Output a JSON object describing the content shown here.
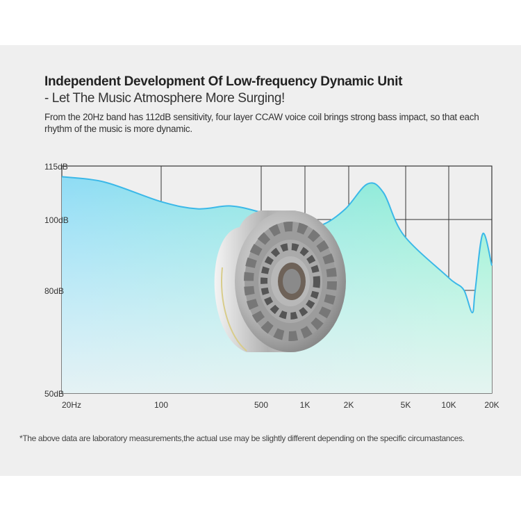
{
  "header": {
    "title": "Independent Development Of Low-frequency Dynamic Unit",
    "subtitle": "- Let The Music Atmosphere More Surging!",
    "description": "From the 20Hz band has 112dB sensitivity, four layer CCAW voice coil brings strong bass impact, so that each rhythm of the music is more dynamic."
  },
  "footnote": "*The above data are laboratory measurements,the actual use may be slightly different depending on the specific circumastances.",
  "chart_data": {
    "type": "area",
    "title": "",
    "xlabel": "",
    "ylabel": "",
    "x_scale": "log",
    "xlim": [
      20,
      20000
    ],
    "ylim": [
      50,
      115
    ],
    "grid": true,
    "x_ticks": [
      {
        "value": 20,
        "label": "20Hz"
      },
      {
        "value": 100,
        "label": "100"
      },
      {
        "value": 500,
        "label": "500"
      },
      {
        "value": 1000,
        "label": "1K"
      },
      {
        "value": 2000,
        "label": "2K"
      },
      {
        "value": 5000,
        "label": "5K"
      },
      {
        "value": 10000,
        "label": "10K"
      },
      {
        "value": 20000,
        "label": "20K"
      }
    ],
    "y_ticks": [
      {
        "value": 115,
        "label": "115dB"
      },
      {
        "value": 100,
        "label": "100dB"
      },
      {
        "value": 80,
        "label": "80dB"
      },
      {
        "value": 50,
        "label": "50dB"
      }
    ],
    "series": [
      {
        "x": [
          20,
          40,
          100,
          180,
          306,
          500,
          696,
          1000,
          1330,
          1900,
          2710,
          3500,
          4820,
          9600,
          11000,
          12800,
          14600,
          15300,
          17300,
          20000
        ],
        "y": [
          112,
          110.5,
          105,
          103,
          103.8,
          102,
          100.2,
          98.4,
          98.6,
          103,
          110,
          107.5,
          95.7,
          84.2,
          82.2,
          80,
          73.5,
          80,
          96,
          87
        ]
      }
    ],
    "colors": {
      "line": "#3bb8e8",
      "fill_left": "#8fdcf5",
      "fill_right": "#8ff0cf",
      "grid": "#333333"
    }
  }
}
